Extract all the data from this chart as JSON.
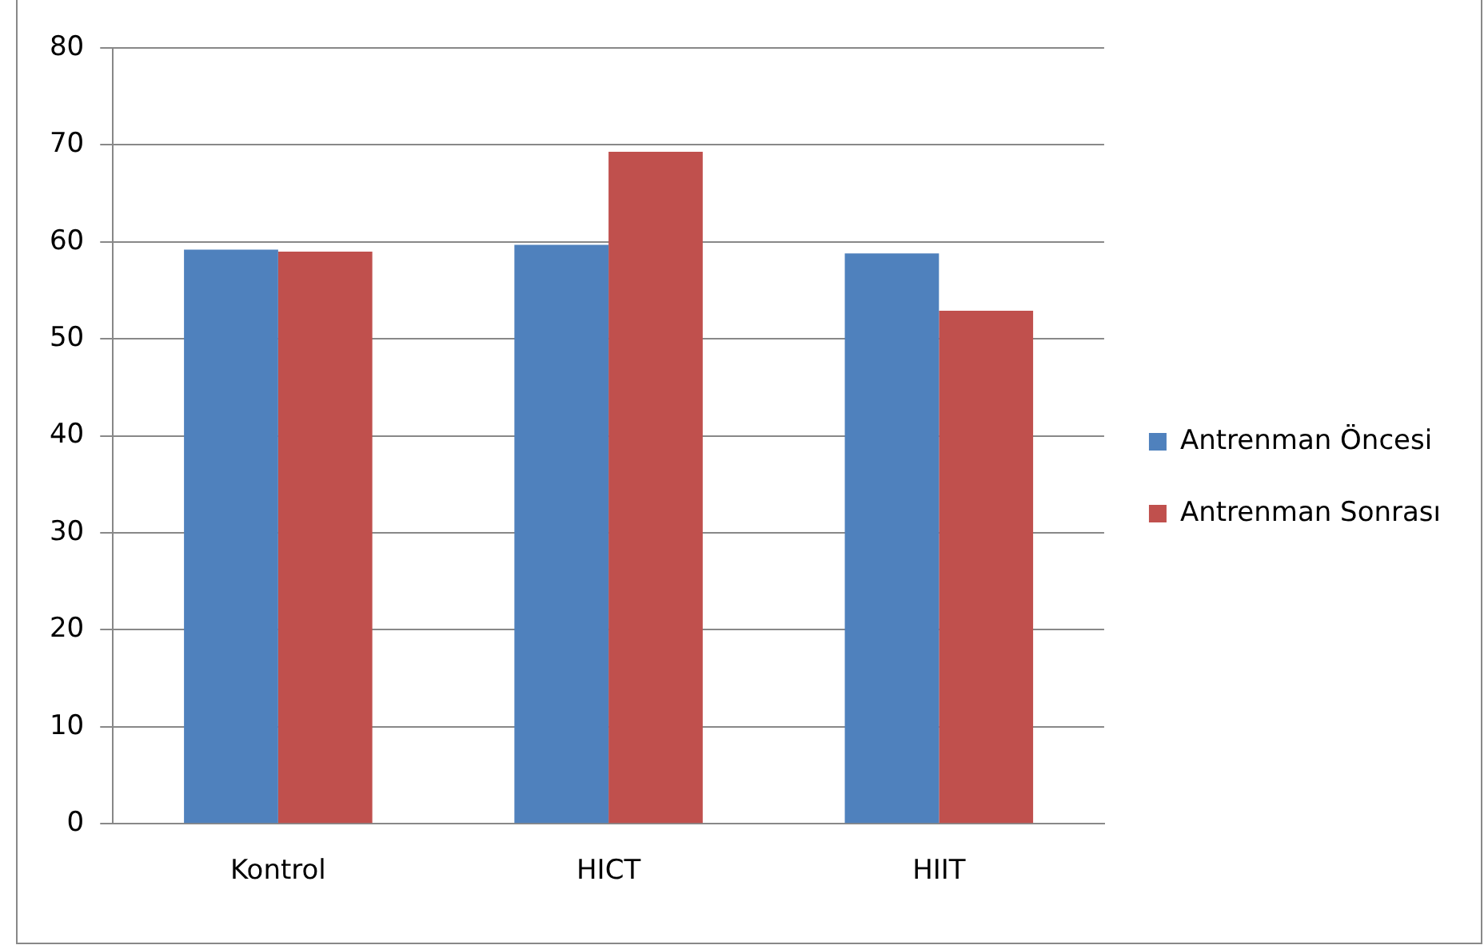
{
  "chart_data": {
    "type": "bar",
    "categories": [
      "Kontrol",
      "HICT",
      "HIIT"
    ],
    "series": [
      {
        "name": "Antrenman Öncesi",
        "color": "#4f81bd",
        "values": [
          59.2,
          59.7,
          58.8
        ]
      },
      {
        "name": "Antrenman Sonrası",
        "color": "#c0504d",
        "values": [
          59.0,
          69.3,
          52.9
        ]
      }
    ],
    "ylim": [
      0,
      80
    ],
    "yticks": [
      0,
      10,
      20,
      30,
      40,
      50,
      60,
      70,
      80
    ],
    "grid": "y",
    "legend": "right"
  }
}
